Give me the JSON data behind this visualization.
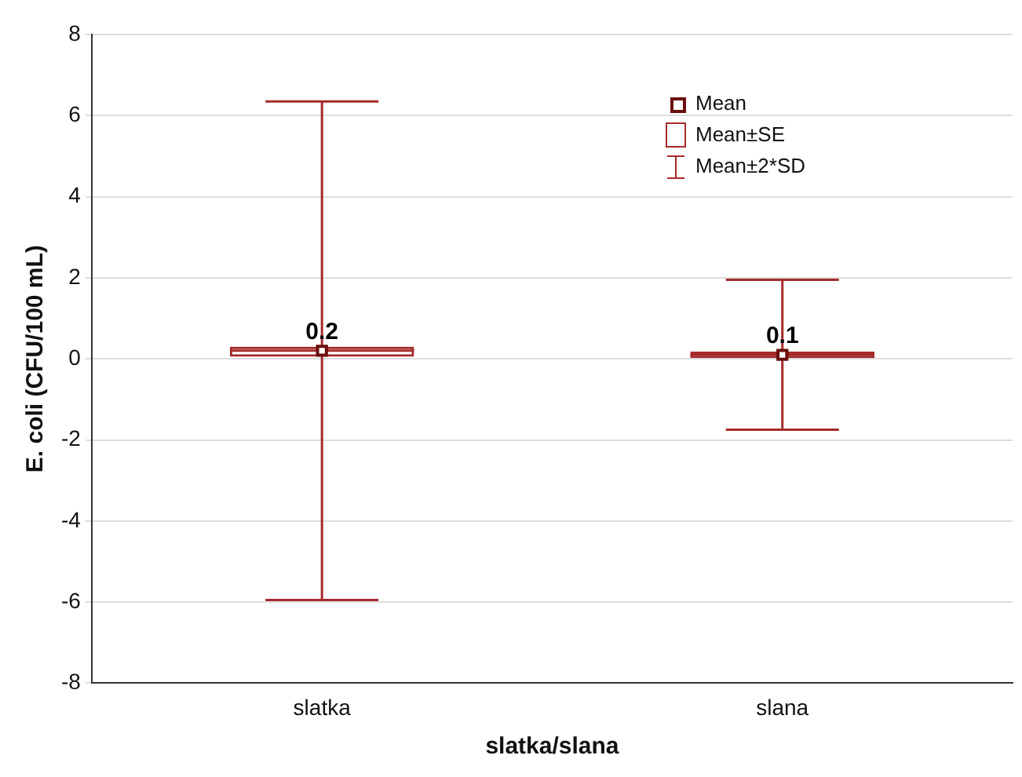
{
  "chart_data": {
    "type": "box",
    "xlabel": "slatka/slana",
    "ylabel": "E. coli (CFU/100 mL)",
    "categories": [
      "slatka",
      "slana"
    ],
    "series": [
      {
        "type": "box",
        "color": "#a52a2a",
        "boxes": [
          {
            "low": -5.95,
            "q1": 0.05,
            "median": 0.2,
            "q3": 0.3,
            "high": 6.35
          },
          {
            "low": -1.75,
            "q1": 0.02,
            "median": 0.1,
            "q3": 0.18,
            "high": 1.95
          }
        ]
      },
      {
        "type": "scatter",
        "color": "#6b0f0f",
        "x": [
          "slatka",
          "slana"
        ],
        "values": [
          0.2,
          0.1
        ]
      }
    ],
    "data_labels": true,
    "grid": "y",
    "marker": "square",
    "ylim": [
      -8,
      8
    ],
    "yticks": [
      -8,
      -6,
      -4,
      -2,
      0,
      2,
      4,
      6,
      8
    ],
    "annotations": [
      "Mean",
      "Mean±SE",
      "Mean±2*SD"
    ]
  }
}
